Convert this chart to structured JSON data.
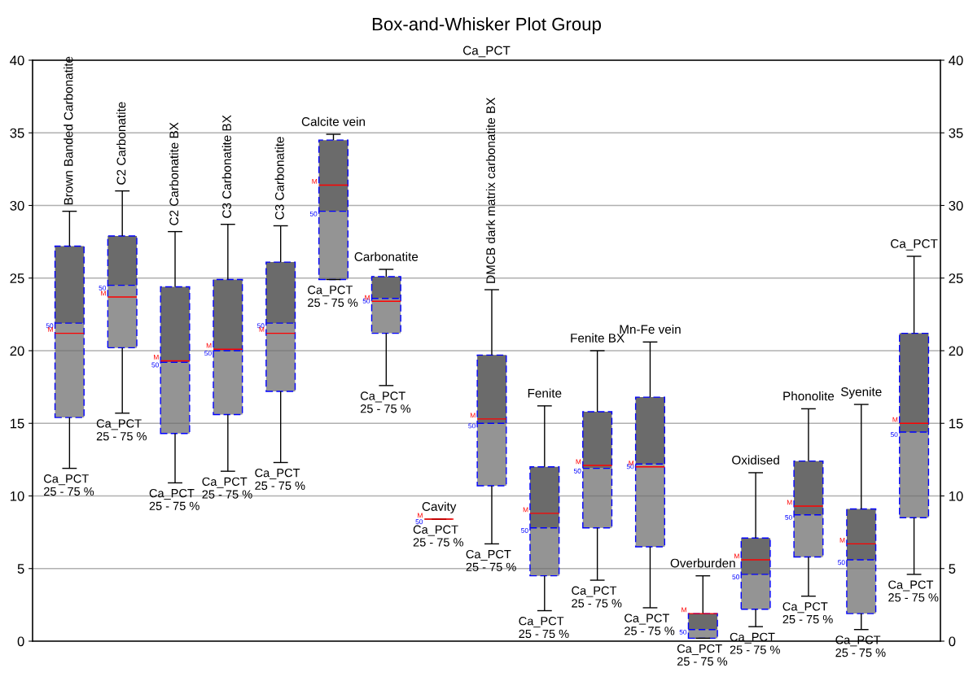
{
  "chart_data": {
    "type": "box",
    "title": "Box-and-Whisker Plot Group",
    "subtitle": "Ca_PCT",
    "categories": [
      "Brown Banded Carbonatite",
      "C2 Carbonatite",
      "C2 Carbonatite BX",
      "C3 Carbonatite BX",
      "C3 Carbonatite",
      "Calcite vein",
      "Carbonatite",
      "Cavity",
      "DMCB dark matrix carbonatite BX",
      "Fenite",
      "Fenite BX",
      "Mn-Fe vein",
      "Overburden",
      "Oxidised",
      "Phonolite",
      "Syenite",
      "Ca_PCT"
    ],
    "series": [
      {
        "color": "#6b6b6b",
        "boxes": [
          {
            "low": 11.9,
            "q1": 15.4,
            "median": 21.9,
            "q3": 27.2,
            "high": 29.6,
            "mean": 21.2
          },
          {
            "low": 15.7,
            "q1": 20.2,
            "median": 24.5,
            "q3": 27.9,
            "high": 31.0,
            "mean": 23.7
          },
          {
            "low": 10.9,
            "q1": 14.3,
            "median": 19.2,
            "q3": 24.4,
            "high": 28.2,
            "mean": 19.3
          },
          {
            "low": 11.7,
            "q1": 15.6,
            "median": 20.0,
            "q3": 24.9,
            "high": 28.7,
            "mean": 20.1
          },
          {
            "low": 12.3,
            "q1": 17.2,
            "median": 21.9,
            "q3": 26.1,
            "high": 28.6,
            "mean": 21.2
          },
          {
            "low": 24.9,
            "q1": 24.9,
            "median": 29.6,
            "q3": 34.5,
            "high": 34.9,
            "mean": 31.4
          },
          {
            "low": 17.6,
            "q1": 21.2,
            "median": 23.6,
            "q3": 25.1,
            "high": 25.6,
            "mean": 23.4
          },
          {
            "low": 8.4,
            "q1": 8.4,
            "median": 8.4,
            "q3": 8.4,
            "high": 8.4,
            "mean": 8.4
          },
          {
            "low": 6.7,
            "q1": 10.7,
            "median": 15.0,
            "q3": 19.7,
            "high": 24.2,
            "mean": 15.3
          },
          {
            "low": 2.1,
            "q1": 4.5,
            "median": 7.8,
            "q3": 12.0,
            "high": 16.2,
            "mean": 8.8
          },
          {
            "low": 4.2,
            "q1": 7.8,
            "median": 11.9,
            "q3": 15.8,
            "high": 20.0,
            "mean": 12.1
          },
          {
            "low": 2.3,
            "q1": 6.5,
            "median": 12.2,
            "q3": 16.8,
            "high": 20.6,
            "mean": 12.0
          },
          {
            "low": 0.2,
            "q1": 0.2,
            "median": 0.8,
            "q3": 1.9,
            "high": 4.5,
            "mean": 1.9
          },
          {
            "low": 1.0,
            "q1": 2.2,
            "median": 4.6,
            "q3": 7.1,
            "high": 11.6,
            "mean": 5.6
          },
          {
            "low": 3.1,
            "q1": 5.8,
            "median": 8.7,
            "q3": 12.4,
            "high": 16.0,
            "mean": 9.3
          },
          {
            "low": 0.8,
            "q1": 1.9,
            "median": 5.6,
            "q3": 9.1,
            "high": 16.3,
            "mean": 6.7
          },
          {
            "low": 4.6,
            "q1": 8.5,
            "median": 14.4,
            "q3": 21.2,
            "high": 26.5,
            "mean": 15.0
          }
        ]
      }
    ],
    "ylim": [
      0,
      40
    ],
    "yticks": [
      0,
      5,
      10,
      15,
      20,
      25,
      30,
      35,
      40
    ],
    "y2lim": [
      0,
      40
    ],
    "y2ticks": [
      0,
      5,
      10,
      15,
      20,
      25,
      30,
      35,
      40
    ],
    "grid": "y",
    "tick_labels": "y",
    "annotations": [
      "Ca_PCT\n25 - 75 %",
      "Ca_PCT\n25 - 75 %",
      "Ca_PCT\n25 - 75 %",
      "Ca_PCT\n25 - 75 %",
      "Ca_PCT\n25 - 75 %",
      "Ca_PCT\n25 - 75 %",
      "Ca_PCT\n25 - 75 %",
      "Ca_PCT\n25 - 75 %",
      "Ca_PCT\n25 - 75 %",
      "Ca_PCT\n25 - 75 %",
      "Ca_PCT\n25 - 75 %",
      "Ca_PCT\n25 - 75 %",
      "Ca_PCT\n25 - 75 %",
      "Ca_PCT\n25 - 75 %",
      "Ca_PCT\n25 - 75 %",
      "Ca_PCT\n25 - 75 %",
      "Ca_PCT\n25 - 75 %",
      {
        "text": "50",
        "x": "Brown Banded Carbonatite",
        "y": 21.9
      },
      {
        "text": "M",
        "x": "Brown Banded Carbonatite",
        "y": 21.2
      },
      {
        "text": "50",
        "x": "C2 Carbonatite",
        "y": 24.5
      },
      {
        "text": "M",
        "x": "C2 Carbonatite",
        "y": 23.7
      },
      {
        "text": "50",
        "x": "C2 Carbonatite BX",
        "y": 19.2
      },
      {
        "text": "M",
        "x": "C2 Carbonatite BX",
        "y": 19.3
      },
      {
        "text": "50",
        "x": "C3 Carbonatite BX",
        "y": 20.0
      },
      {
        "text": "M",
        "x": "C3 Carbonatite BX",
        "y": 20.1
      },
      {
        "text": "50",
        "x": "C3 Carbonatite",
        "y": 21.9
      },
      {
        "text": "M",
        "x": "C3 Carbonatite",
        "y": 21.2
      },
      {
        "text": "50",
        "x": "Calcite vein",
        "y": 29.6
      },
      {
        "text": "M",
        "x": "Calcite vein",
        "y": 31.4
      },
      {
        "text": "50",
        "x": "Carbonatite",
        "y": 23.6
      },
      {
        "text": "M",
        "x": "Carbonatite",
        "y": 23.4
      },
      {
        "text": "50",
        "x": "Cavity",
        "y": 8.4
      },
      {
        "text": "M",
        "x": "Cavity",
        "y": 8.4
      },
      {
        "text": "50",
        "x": "DMCB dark matrix carbonatite BX",
        "y": 15.0
      },
      {
        "text": "M",
        "x": "DMCB dark matrix carbonatite BX",
        "y": 15.3
      },
      {
        "text": "50",
        "x": "Fenite",
        "y": 7.8
      },
      {
        "text": "M",
        "x": "Fenite",
        "y": 8.8
      },
      {
        "text": "50",
        "x": "Fenite BX",
        "y": 11.9
      },
      {
        "text": "M",
        "x": "Fenite BX",
        "y": 12.1
      },
      {
        "text": "50",
        "x": "Mn-Fe vein",
        "y": 12.2
      },
      {
        "text": "M",
        "x": "Mn-Fe vein",
        "y": 12.0
      },
      {
        "text": "50",
        "x": "Overburden",
        "y": 0.8
      },
      {
        "text": "M",
        "x": "Overburden",
        "y": 1.9
      },
      {
        "text": "50",
        "x": "Oxidised",
        "y": 4.6
      },
      {
        "text": "M",
        "x": "Oxidised",
        "y": 5.6
      },
      {
        "text": "50",
        "x": "Phonolite",
        "y": 8.7
      },
      {
        "text": "M",
        "x": "Phonolite",
        "y": 9.3
      },
      {
        "text": "50",
        "x": "Syenite",
        "y": 5.6
      },
      {
        "text": "M",
        "x": "Syenite",
        "y": 6.7
      },
      {
        "text": "50",
        "x": "Ca_PCT",
        "y": 14.4
      },
      {
        "text": "M",
        "x": "Ca_PCT",
        "y": 15.0
      }
    ]
  }
}
